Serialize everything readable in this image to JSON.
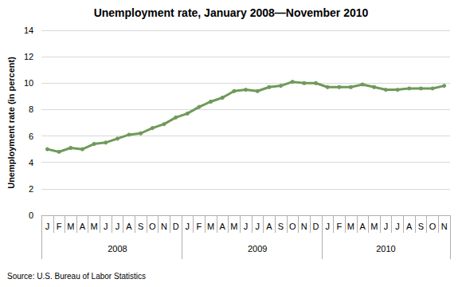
{
  "chart_data": {
    "type": "line",
    "title": "Unemployment rate, January 2008—November 2010",
    "y_label": "Unemployment rate (in percent)",
    "source": "Source: U.S. Bureau of Labor Statistics",
    "categories": [
      "J",
      "F",
      "M",
      "A",
      "M",
      "J",
      "J",
      "A",
      "S",
      "O",
      "N",
      "D",
      "J",
      "F",
      "M",
      "A",
      "M",
      "J",
      "J",
      "A",
      "S",
      "O",
      "N",
      "D",
      "J",
      "F",
      "M",
      "A",
      "M",
      "J",
      "J",
      "A",
      "S",
      "O",
      "N"
    ],
    "years": [
      "2008",
      "2008",
      "2008",
      "2008",
      "2008",
      "2008",
      "2008",
      "2008",
      "2008",
      "2008",
      "2008",
      "2008",
      "2009",
      "2009",
      "2009",
      "2009",
      "2009",
      "2009",
      "2009",
      "2009",
      "2009",
      "2009",
      "2009",
      "2009",
      "2010",
      "2010",
      "2010",
      "2010",
      "2010",
      "2010",
      "2010",
      "2010",
      "2010",
      "2010",
      "2010"
    ],
    "values": [
      5.0,
      4.8,
      5.1,
      5.0,
      5.4,
      5.5,
      5.8,
      6.1,
      6.2,
      6.6,
      6.9,
      7.4,
      7.7,
      8.2,
      8.6,
      8.9,
      9.4,
      9.5,
      9.4,
      9.7,
      9.8,
      10.1,
      10.0,
      10.0,
      9.7,
      9.7,
      9.7,
      9.9,
      9.7,
      9.5,
      9.5,
      9.6,
      9.6,
      9.6,
      9.8
    ],
    "color": "#6f9a5a",
    "marker": "circle",
    "ylim": [
      0,
      14
    ],
    "yticks": [
      0,
      2,
      4,
      6,
      8,
      10,
      12,
      14
    ],
    "grid": true
  }
}
